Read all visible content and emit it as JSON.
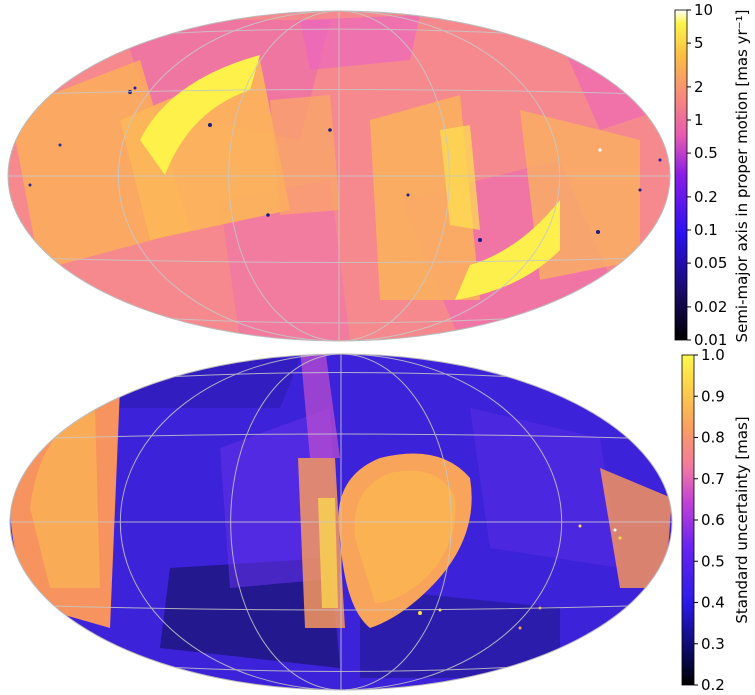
{
  "maps": [
    {
      "id": "top",
      "projection": "Aitoff/Hammer all-sky",
      "colorbar_label": "Semi-major axis in proper motion [mas yr⁻¹]",
      "colorbar_scale": "log",
      "colorbar_range": [
        0.01,
        10
      ],
      "colorbar_ticks": [
        "10",
        "5",
        "2",
        "1",
        "0.5",
        "0.2",
        "0.1",
        "0.05",
        "0.02",
        "0.01"
      ],
      "colormap": "gnuplot2-like (black → blue → magenta → orange → yellow → white)",
      "dominant_colors": [
        "#f78a8c",
        "#fbb25a",
        "#fdf24c",
        "#ec5fc8"
      ]
    },
    {
      "id": "bottom",
      "projection": "Aitoff/Hammer all-sky",
      "colorbar_label": "Standard uncertainty [mas]",
      "colorbar_scale": "linear",
      "colorbar_range": [
        0.2,
        1.0
      ],
      "colorbar_ticks": [
        "1.0",
        "0.9",
        "0.8",
        "0.7",
        "0.6",
        "0.5",
        "0.4",
        "0.3",
        "0.2"
      ],
      "colormap": "gnuplot2-like (black → blue → magenta → orange → yellow)",
      "dominant_colors": [
        "#3a1fd8",
        "#5a2ef0",
        "#f79a5a",
        "#fde24a"
      ]
    }
  ]
}
